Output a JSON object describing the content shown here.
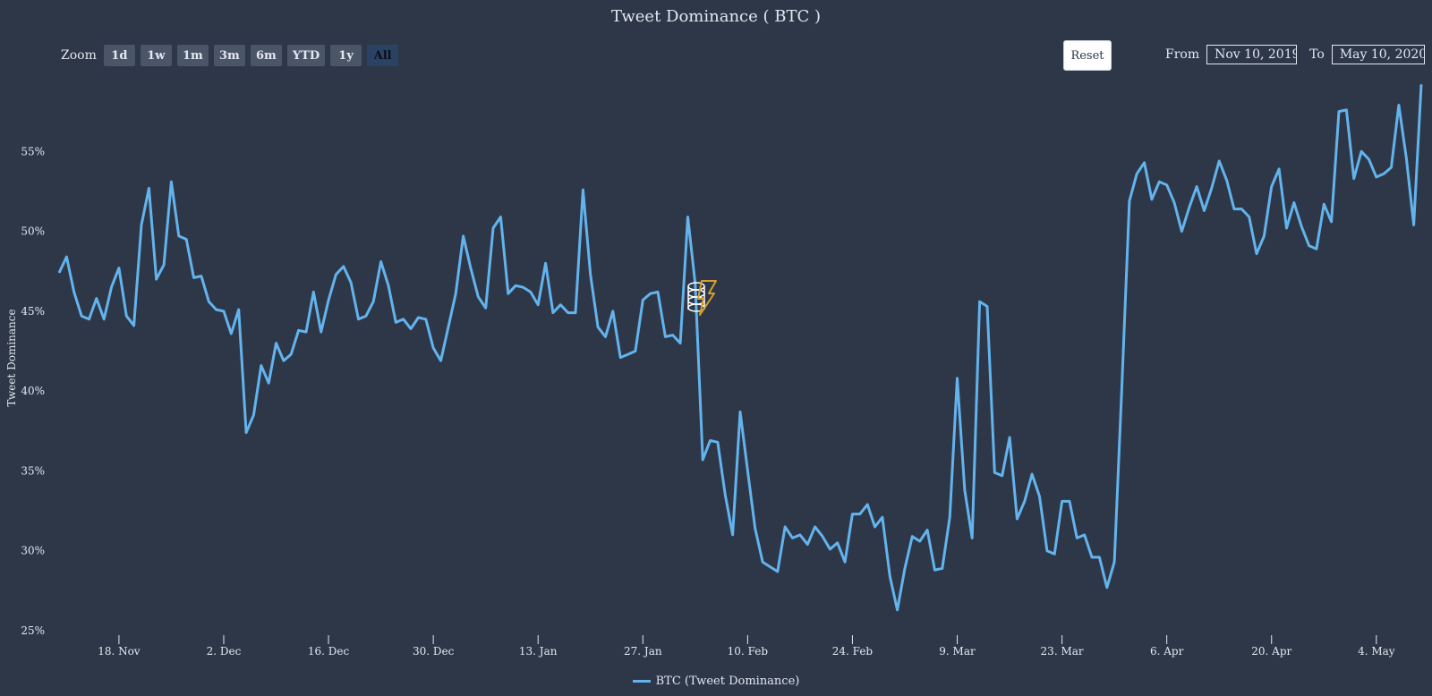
{
  "toolbar": {
    "zoom_label": "Zoom",
    "zoom_buttons": [
      "1d",
      "1w",
      "1m",
      "3m",
      "6m",
      "YTD",
      "1y",
      "All"
    ],
    "active_zoom": "All",
    "reset_label": "Reset",
    "from_label": "From",
    "from_value": "Nov 10, 2019",
    "to_label": "To",
    "to_value": "May 10, 2020"
  },
  "colors": {
    "background": "#2d3748",
    "series": "#63b3ed",
    "text": "#e2e8f0",
    "watermark": "#d69e2e"
  },
  "chart_data": {
    "type": "line",
    "title": "Tweet Dominance ( BTC )",
    "ylabel": "Tweet Dominance",
    "xlabel": "",
    "ylim": [
      25,
      60
    ],
    "xlim": [
      "2019-11-10",
      "2020-05-10"
    ],
    "y_ticks": [
      "25%",
      "30%",
      "35%",
      "40%",
      "45%",
      "50%",
      "55%"
    ],
    "y_tick_values": [
      25,
      30,
      35,
      40,
      45,
      50,
      55
    ],
    "x_ticks": [
      "18. Nov",
      "2. Dec",
      "16. Dec",
      "30. Dec",
      "13. Jan",
      "27. Jan",
      "10. Feb",
      "24. Feb",
      "9. Mar",
      "23. Mar",
      "6. Apr",
      "20. Apr",
      "4. May"
    ],
    "x_tick_dates": [
      "2019-11-18",
      "2019-12-02",
      "2019-12-16",
      "2019-12-30",
      "2020-01-13",
      "2020-01-27",
      "2020-02-10",
      "2020-02-24",
      "2020-03-09",
      "2020-03-23",
      "2020-04-06",
      "2020-04-20",
      "2020-05-04"
    ],
    "legend": {
      "position": "bottom-center",
      "entries": [
        "BTC (Tweet Dominance)"
      ]
    },
    "grid": false,
    "series": [
      {
        "name": "BTC (Tweet Dominance)",
        "x": [
          "2019-11-10",
          "2019-11-11",
          "2019-11-12",
          "2019-11-13",
          "2019-11-14",
          "2019-11-15",
          "2019-11-16",
          "2019-11-17",
          "2019-11-18",
          "2019-11-19",
          "2019-11-20",
          "2019-11-21",
          "2019-11-22",
          "2019-11-23",
          "2019-11-24",
          "2019-11-25",
          "2019-11-26",
          "2019-11-27",
          "2019-11-28",
          "2019-11-29",
          "2019-11-30",
          "2019-12-01",
          "2019-12-02",
          "2019-12-03",
          "2019-12-04",
          "2019-12-05",
          "2019-12-06",
          "2019-12-07",
          "2019-12-08",
          "2019-12-09",
          "2019-12-10",
          "2019-12-11",
          "2019-12-12",
          "2019-12-13",
          "2019-12-14",
          "2019-12-15",
          "2019-12-16",
          "2019-12-17",
          "2019-12-18",
          "2019-12-19",
          "2019-12-20",
          "2019-12-21",
          "2019-12-22",
          "2019-12-23",
          "2019-12-24",
          "2019-12-25",
          "2019-12-26",
          "2019-12-27",
          "2019-12-28",
          "2019-12-29",
          "2019-12-30",
          "2019-12-31",
          "2020-01-01",
          "2020-01-02",
          "2020-01-03",
          "2020-01-04",
          "2020-01-05",
          "2020-01-06",
          "2020-01-07",
          "2020-01-08",
          "2020-01-09",
          "2020-01-10",
          "2020-01-11",
          "2020-01-12",
          "2020-01-13",
          "2020-01-14",
          "2020-01-15",
          "2020-01-16",
          "2020-01-17",
          "2020-01-18",
          "2020-01-19",
          "2020-01-20",
          "2020-01-21",
          "2020-01-22",
          "2020-01-23",
          "2020-01-24",
          "2020-01-25",
          "2020-01-26",
          "2020-01-27",
          "2020-01-28",
          "2020-01-29",
          "2020-01-30",
          "2020-01-31",
          "2020-02-01",
          "2020-02-02",
          "2020-02-03",
          "2020-02-04",
          "2020-02-05",
          "2020-02-06",
          "2020-02-07",
          "2020-02-08",
          "2020-02-09",
          "2020-02-10",
          "2020-02-11",
          "2020-02-12",
          "2020-02-13",
          "2020-02-14",
          "2020-02-15",
          "2020-02-16",
          "2020-02-17",
          "2020-02-18",
          "2020-02-19",
          "2020-02-20",
          "2020-02-21",
          "2020-02-22",
          "2020-02-23",
          "2020-02-24",
          "2020-02-25",
          "2020-02-26",
          "2020-02-27",
          "2020-02-28",
          "2020-02-29",
          "2020-03-01",
          "2020-03-02",
          "2020-03-03",
          "2020-03-04",
          "2020-03-05",
          "2020-03-06",
          "2020-03-07",
          "2020-03-08",
          "2020-03-09",
          "2020-03-10",
          "2020-03-11",
          "2020-03-12",
          "2020-03-13",
          "2020-03-14",
          "2020-03-15",
          "2020-03-16",
          "2020-03-17",
          "2020-03-18",
          "2020-03-19",
          "2020-03-20",
          "2020-03-21",
          "2020-03-22",
          "2020-03-23",
          "2020-03-24",
          "2020-03-25",
          "2020-03-26",
          "2020-03-27",
          "2020-03-28",
          "2020-03-29",
          "2020-03-30",
          "2020-03-31",
          "2020-04-01",
          "2020-04-02",
          "2020-04-03",
          "2020-04-04",
          "2020-04-05",
          "2020-04-06",
          "2020-04-07",
          "2020-04-08",
          "2020-04-09",
          "2020-04-10",
          "2020-04-11",
          "2020-04-12",
          "2020-04-13",
          "2020-04-14",
          "2020-04-15",
          "2020-04-16",
          "2020-04-17",
          "2020-04-18",
          "2020-04-19",
          "2020-04-20",
          "2020-04-21",
          "2020-04-22",
          "2020-04-23",
          "2020-04-24",
          "2020-04-25",
          "2020-04-26",
          "2020-04-27",
          "2020-04-28",
          "2020-04-29",
          "2020-04-30",
          "2020-05-01",
          "2020-05-02",
          "2020-05-03",
          "2020-05-04",
          "2020-05-05",
          "2020-05-06",
          "2020-05-07",
          "2020-05-08",
          "2020-05-09",
          "2020-05-10"
        ],
        "values": [
          47.4,
          48.4,
          46.2,
          44.7,
          44.5,
          45.8,
          44.5,
          46.5,
          47.7,
          44.7,
          44.1,
          50.4,
          52.7,
          47.0,
          47.9,
          53.1,
          49.7,
          49.5,
          47.1,
          47.2,
          45.6,
          45.1,
          45.0,
          43.6,
          45.1,
          37.4,
          38.5,
          41.6,
          40.5,
          43.0,
          41.9,
          42.3,
          43.8,
          43.7,
          46.2,
          43.7,
          45.7,
          47.3,
          47.8,
          46.8,
          44.5,
          44.7,
          45.6,
          48.1,
          46.6,
          44.3,
          44.5,
          43.9,
          44.6,
          44.5,
          42.7,
          41.9,
          44.0,
          46.1,
          49.7,
          47.7,
          45.9,
          45.2,
          50.2,
          50.9,
          46.1,
          46.6,
          46.5,
          46.2,
          45.4,
          48.0,
          44.9,
          45.4,
          44.9,
          44.9,
          52.6,
          47.3,
          44.0,
          43.4,
          45.0,
          42.1,
          42.3,
          42.5,
          45.7,
          46.1,
          46.2,
          43.4,
          43.5,
          43.0,
          50.9,
          46.7,
          35.7,
          36.9,
          36.8,
          33.5,
          31.0,
          38.7,
          35.0,
          31.4,
          29.3,
          29.0,
          28.7,
          31.5,
          30.8,
          31.0,
          30.4,
          31.5,
          30.9,
          30.1,
          30.5,
          29.3,
          32.3,
          32.3,
          32.9,
          31.5,
          32.1,
          28.4,
          26.3,
          28.9,
          30.9,
          30.6,
          31.3,
          28.8,
          28.9,
          32.1,
          40.8,
          33.8,
          30.8,
          45.6,
          45.3,
          34.9,
          34.7,
          37.1,
          32.0,
          33.1,
          34.8,
          33.4,
          30.0,
          29.8,
          33.1,
          33.1,
          30.8,
          31.0,
          29.6,
          29.6,
          27.7,
          29.3,
          40.3,
          51.9,
          53.6,
          54.3,
          52.0,
          53.1,
          52.9,
          51.8,
          50.0,
          51.5,
          52.8,
          51.3,
          52.7,
          54.4,
          53.2,
          51.4,
          51.4,
          50.9,
          48.6,
          49.7,
          52.8,
          53.9,
          50.2,
          51.8,
          50.3,
          49.1,
          48.9,
          51.7,
          50.6,
          57.5,
          57.6,
          53.3,
          55.0,
          54.5,
          53.4,
          53.6,
          54.0,
          57.9,
          54.6,
          50.4,
          59.2
        ]
      }
    ]
  }
}
